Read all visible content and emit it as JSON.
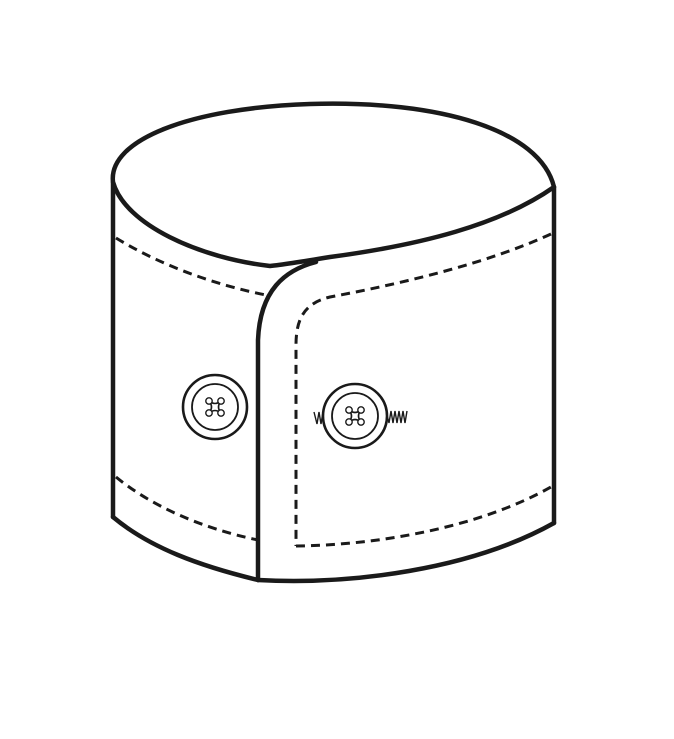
{
  "figure": {
    "subject": "shirt-cuff",
    "colors": {
      "line": "#1a1a1a",
      "background": "#ffffff"
    },
    "buttons": [
      {
        "name": "left-button",
        "holes": 4
      },
      {
        "name": "right-button",
        "holes": 4,
        "buttonhole": true
      }
    ]
  }
}
